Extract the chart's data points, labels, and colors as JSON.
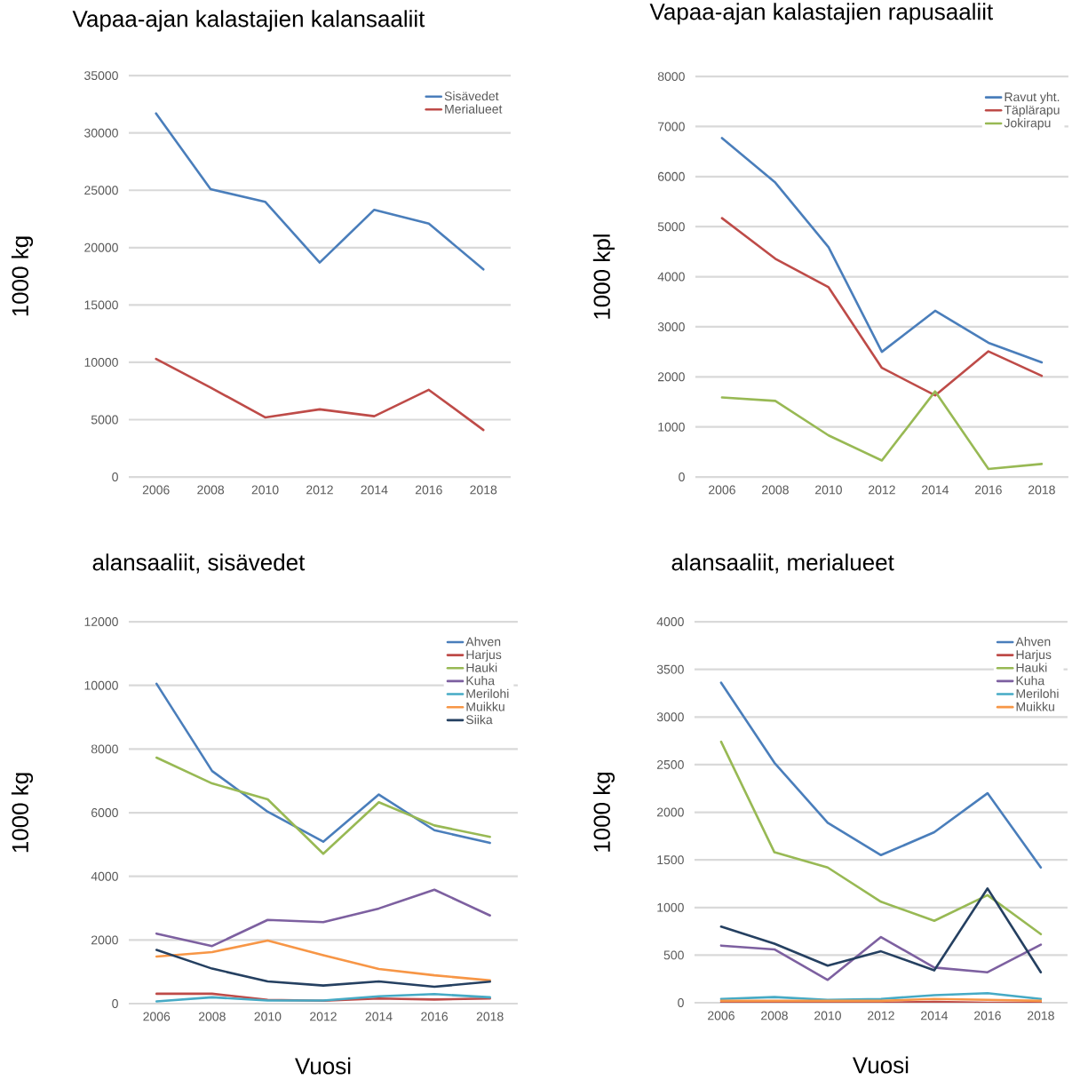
{
  "chart_data": [
    {
      "type": "line",
      "title": "Vapaa-ajan kalastajien kalansaaliit",
      "ylabel": "1000 kg",
      "categories": [
        "2006",
        "2008",
        "2010",
        "2012",
        "2014",
        "2016",
        "2018"
      ],
      "series": [
        {
          "name": "Sisävedet",
          "color": "#4a7ebb",
          "values": [
            31700,
            25100,
            24000,
            18700,
            23300,
            22100,
            18100
          ]
        },
        {
          "name": "Merialueet",
          "color": "#be4b48",
          "values": [
            10300,
            7800,
            5200,
            5900,
            5300,
            7600,
            4100
          ]
        }
      ],
      "ylim": [
        0,
        35000
      ],
      "yticks": [
        0,
        5000,
        10000,
        15000,
        20000,
        25000,
        30000,
        35000
      ],
      "grid": "y",
      "legend": "top right"
    },
    {
      "type": "line",
      "title": "Vapaa-ajan kalastajien rapusaaliit",
      "ylabel": "1000 kpl",
      "categories": [
        "2006",
        "2008",
        "2010",
        "2012",
        "2014",
        "2016",
        "2018"
      ],
      "series": [
        {
          "name": "Ravut yht.",
          "color": "#4a7ebb",
          "values": [
            6770,
            5880,
            4590,
            2500,
            3320,
            2680,
            2290
          ]
        },
        {
          "name": "Täplärapu",
          "color": "#be4b48",
          "values": [
            5170,
            4360,
            3790,
            2180,
            1630,
            2510,
            2020
          ]
        },
        {
          "name": "Jokirapu",
          "color": "#98b954",
          "values": [
            1590,
            1520,
            830,
            330,
            1710,
            160,
            260
          ]
        }
      ],
      "ylim": [
        0,
        8000
      ],
      "yticks": [
        0,
        1000,
        2000,
        3000,
        4000,
        5000,
        6000,
        7000,
        8000
      ],
      "grid": "y",
      "legend": "top right"
    },
    {
      "type": "line",
      "title": "alansaaliit, sisävedet",
      "ylabel": "1000 kg",
      "xlabel": "Vuosi",
      "categories": [
        "2006",
        "2008",
        "2010",
        "2012",
        "2014",
        "2016",
        "2018"
      ],
      "series": [
        {
          "name": "Ahven",
          "color": "#4a7ebb",
          "values": [
            10050,
            7310,
            6030,
            5090,
            6570,
            5450,
            5050
          ]
        },
        {
          "name": "Harjus",
          "color": "#be4b48",
          "values": [
            310,
            310,
            120,
            90,
            160,
            130,
            160
          ]
        },
        {
          "name": "Hauki",
          "color": "#98b954",
          "values": [
            7730,
            6920,
            6420,
            4710,
            6330,
            5600,
            5240
          ]
        },
        {
          "name": "Kuha",
          "color": "#7d60a0",
          "values": [
            2200,
            1810,
            2630,
            2560,
            2990,
            3580,
            2770
          ]
        },
        {
          "name": "Merilohi",
          "color": "#46aac5",
          "values": [
            70,
            200,
            100,
            100,
            230,
            300,
            200
          ]
        },
        {
          "name": "Muikku",
          "color": "#f79646",
          "values": [
            1480,
            1620,
            1980,
            1520,
            1090,
            890,
            730
          ]
        },
        {
          "name": "Siika",
          "color": "#254061",
          "values": [
            1690,
            1100,
            700,
            570,
            700,
            530,
            690
          ]
        }
      ],
      "ylim": [
        0,
        12000
      ],
      "yticks": [
        0,
        2000,
        4000,
        6000,
        8000,
        10000,
        12000
      ],
      "grid": "y",
      "legend": "top right"
    },
    {
      "type": "line",
      "title": "alansaaliit, merialueet",
      "ylabel": "1000 kg",
      "xlabel": "Vuosi",
      "categories": [
        "2006",
        "2008",
        "2010",
        "2012",
        "2014",
        "2016",
        "2018"
      ],
      "series": [
        {
          "name": "Ahven",
          "color": "#4a7ebb",
          "values": [
            3360,
            2520,
            1890,
            1550,
            1790,
            2200,
            1420
          ]
        },
        {
          "name": "Harjus",
          "color": "#be4b48",
          "values": [
            0,
            0,
            0,
            0,
            10,
            0,
            0
          ]
        },
        {
          "name": "Hauki",
          "color": "#98b954",
          "values": [
            2740,
            1580,
            1420,
            1060,
            860,
            1130,
            720
          ]
        },
        {
          "name": "Kuha",
          "color": "#7d60a0",
          "values": [
            600,
            560,
            240,
            690,
            370,
            320,
            610
          ]
        },
        {
          "name": "Merilohi",
          "color": "#46aac5",
          "values": [
            40,
            60,
            30,
            40,
            80,
            100,
            40
          ]
        },
        {
          "name": "Muikku",
          "color": "#f79646",
          "values": [
            20,
            20,
            20,
            20,
            40,
            30,
            20
          ]
        },
        {
          "color": "#254061",
          "values": [
            800,
            620,
            390,
            540,
            340,
            1200,
            320
          ]
        }
      ],
      "ylim": [
        0,
        4000
      ],
      "yticks": [
        0,
        500,
        1000,
        1500,
        2000,
        2500,
        3000,
        3500,
        4000
      ],
      "grid": "y",
      "legend": "top right"
    }
  ]
}
